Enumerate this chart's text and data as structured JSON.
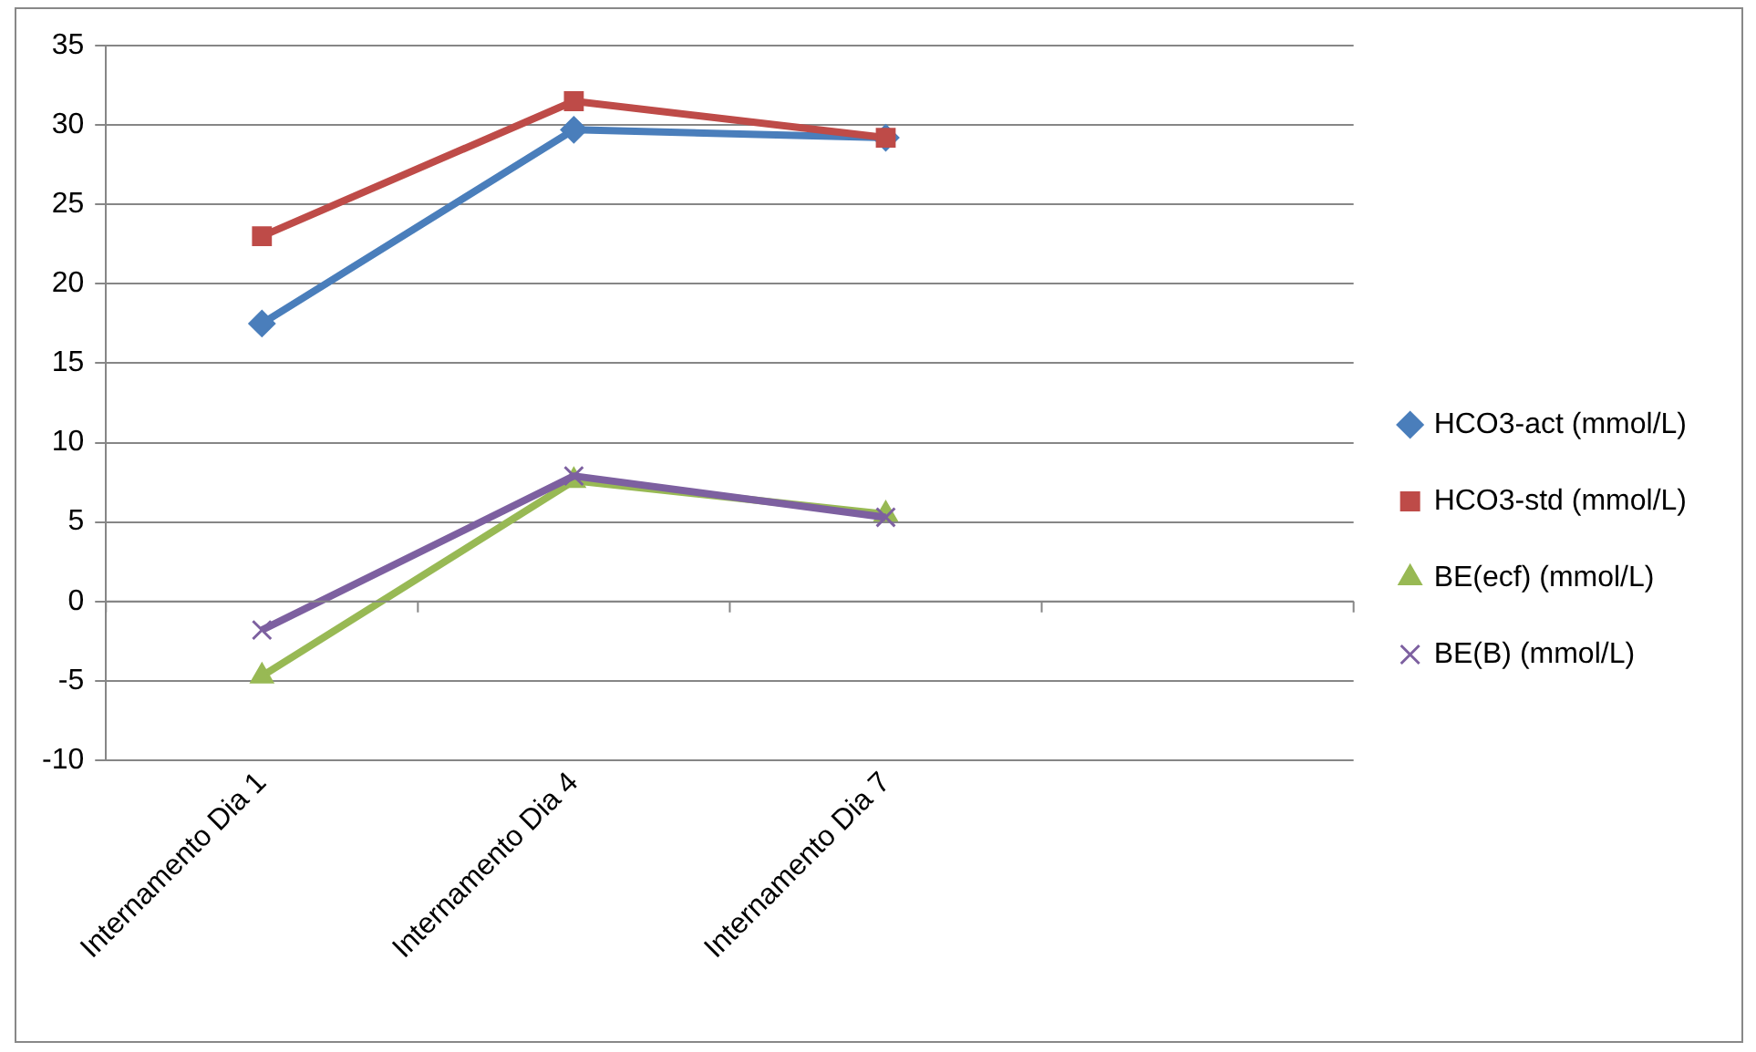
{
  "chart_data": {
    "type": "line",
    "categories": [
      "Internamento Dia 1",
      "Internamento Dia 4",
      "Internamento Dia 7",
      null
    ],
    "series": [
      {
        "name": "HCO3-act (mmol/L)",
        "color": "#4a7ebb",
        "marker": "diamond",
        "values": [
          17.5,
          29.7,
          29.2,
          null
        ]
      },
      {
        "name": "HCO3-std (mmol/L)",
        "color": "#be4b48",
        "marker": "square",
        "values": [
          23.0,
          31.5,
          29.2,
          null
        ]
      },
      {
        "name": "BE(ecf) (mmol/L)",
        "color": "#98b954",
        "marker": "triangle",
        "values": [
          -4.7,
          7.6,
          5.5,
          null
        ]
      },
      {
        "name": "BE(B) (mmol/L)",
        "color": "#7d60a0",
        "marker": "cross",
        "values": [
          -1.8,
          7.9,
          5.3,
          null
        ]
      }
    ],
    "ylim": [
      -10,
      35
    ],
    "yticks": [
      -10,
      -5,
      0,
      5,
      10,
      15,
      20,
      25,
      30,
      35
    ],
    "grid": "y",
    "legend": "right"
  }
}
